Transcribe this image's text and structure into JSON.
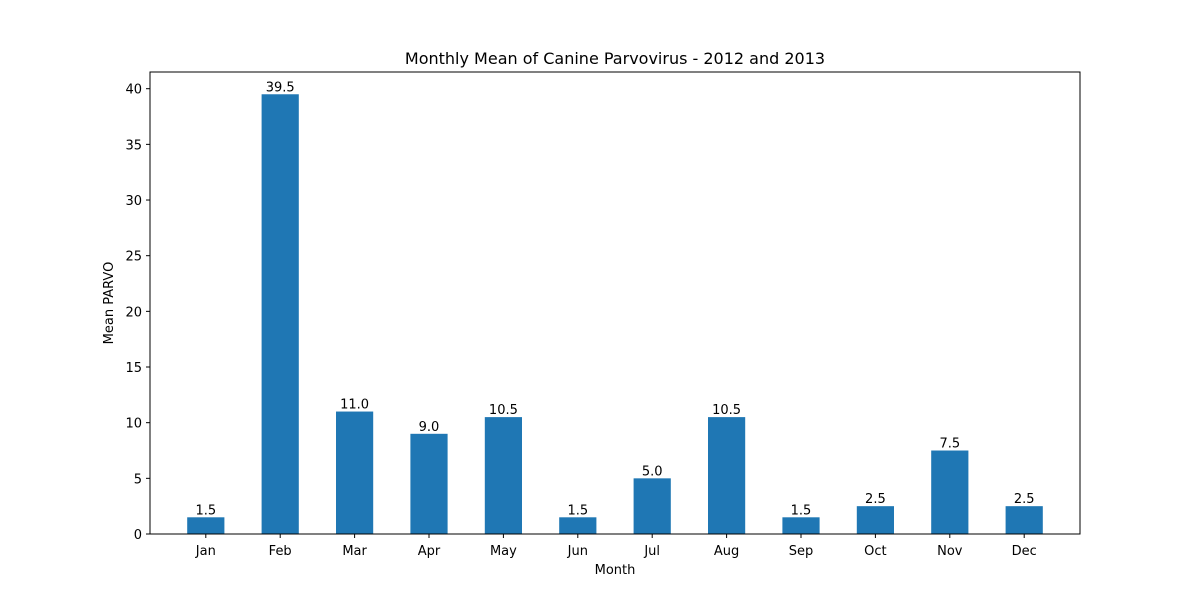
{
  "chart_data": {
    "type": "bar",
    "title": "Monthly Mean of Canine Parvovirus - 2012 and 2013",
    "xlabel": "Month",
    "ylabel": "Mean PARVO",
    "categories": [
      "Jan",
      "Feb",
      "Mar",
      "Apr",
      "May",
      "Jun",
      "Jul",
      "Aug",
      "Sep",
      "Oct",
      "Nov",
      "Dec"
    ],
    "values": [
      1.5,
      39.5,
      11.0,
      9.0,
      10.5,
      1.5,
      5.0,
      10.5,
      1.5,
      2.5,
      7.5,
      2.5
    ],
    "data_labels": [
      "1.5",
      "39.5",
      "11.0",
      "9.0",
      "10.5",
      "1.5",
      "5.0",
      "10.5",
      "1.5",
      "2.5",
      "7.5",
      "2.5"
    ],
    "ylim": [
      0,
      41.5
    ],
    "yticks": [
      0,
      5,
      10,
      15,
      20,
      25,
      30,
      35,
      40
    ],
    "bar_color": "#1f77b4",
    "grid": false,
    "legend": "none"
  }
}
